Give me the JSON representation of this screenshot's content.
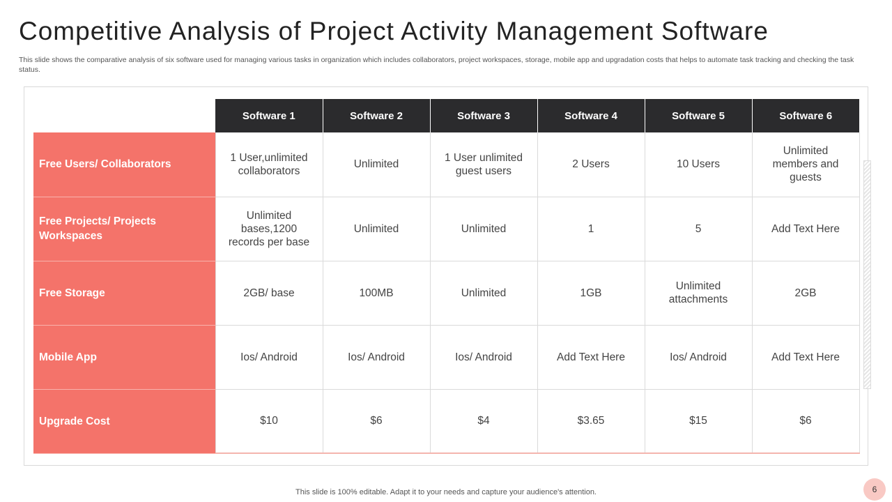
{
  "slide": {
    "title": "Competitive Analysis of Project Activity Management Software",
    "subtitle": "This slide shows the comparative analysis of six software used for managing various tasks in organization which includes collaborators, project workspaces, storage, mobile app and upgradation costs that helps to automate task tracking and checking the task status.",
    "footer": "This slide is 100% editable. Adapt it to your needs and capture your audience's attention.",
    "page_number": "6"
  },
  "table": {
    "columns": [
      "Software  1",
      "Software  2",
      "Software  3",
      "Software  4",
      "Software  5",
      "Software  6"
    ],
    "rows": [
      {
        "label": "Free Users/ Collaborators",
        "cells": [
          "1 User,unlimited collaborators",
          "Unlimited",
          "1 User unlimited guest users",
          "2 Users",
          "10 Users",
          "Unlimited members and guests"
        ]
      },
      {
        "label": "Free Projects/  Projects Workspaces",
        "cells": [
          "Unlimited bases,1200 records per base",
          "Unlimited",
          "Unlimited",
          "1",
          "5",
          "Add Text Here"
        ]
      },
      {
        "label": "Free  Storage",
        "cells": [
          "2GB/ base",
          "100MB",
          "Unlimited",
          "1GB",
          "Unlimited attachments",
          "2GB"
        ]
      },
      {
        "label": "Mobile  App",
        "cells": [
          "Ios/ Android",
          "Ios/ Android",
          "Ios/ Android",
          "Add Text Here",
          "Ios/ Android",
          "Add Text Here"
        ]
      },
      {
        "label": "Upgrade  Cost",
        "cells": [
          "$10",
          "$6",
          "$4",
          "$3.65",
          "$15",
          "$6"
        ]
      }
    ]
  },
  "colors": {
    "header_bg": "#2b2b2d",
    "row_label_bg": "#f4736a",
    "accent_light": "#f9c9c4"
  }
}
